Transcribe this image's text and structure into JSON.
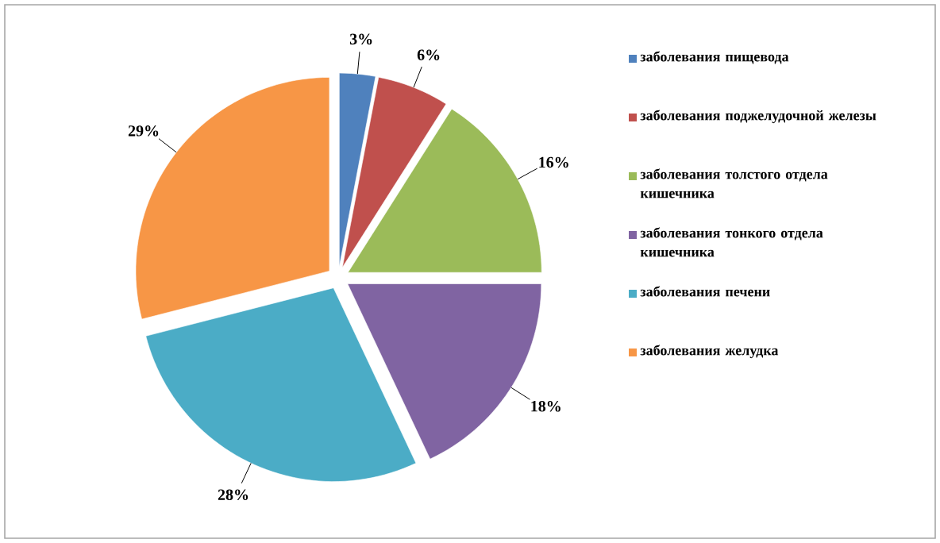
{
  "chart_data": {
    "type": "pie",
    "categories": [
      "заболевания пищевода",
      "заболевания поджелудочной железы",
      "заболевания толстого отдела кишечника",
      "заболевания тонкого отдела кишечника",
      "заболевания печени",
      "заболевания желудка"
    ],
    "values": [
      3,
      6,
      16,
      18,
      28,
      29
    ],
    "value_labels": [
      "3%",
      "6%",
      "16%",
      "18%",
      "28%",
      "29%"
    ],
    "colors": [
      "#4f81bd",
      "#c0504d",
      "#9bbb59",
      "#8064a2",
      "#4bacc6",
      "#f79646"
    ],
    "legend": "right"
  }
}
